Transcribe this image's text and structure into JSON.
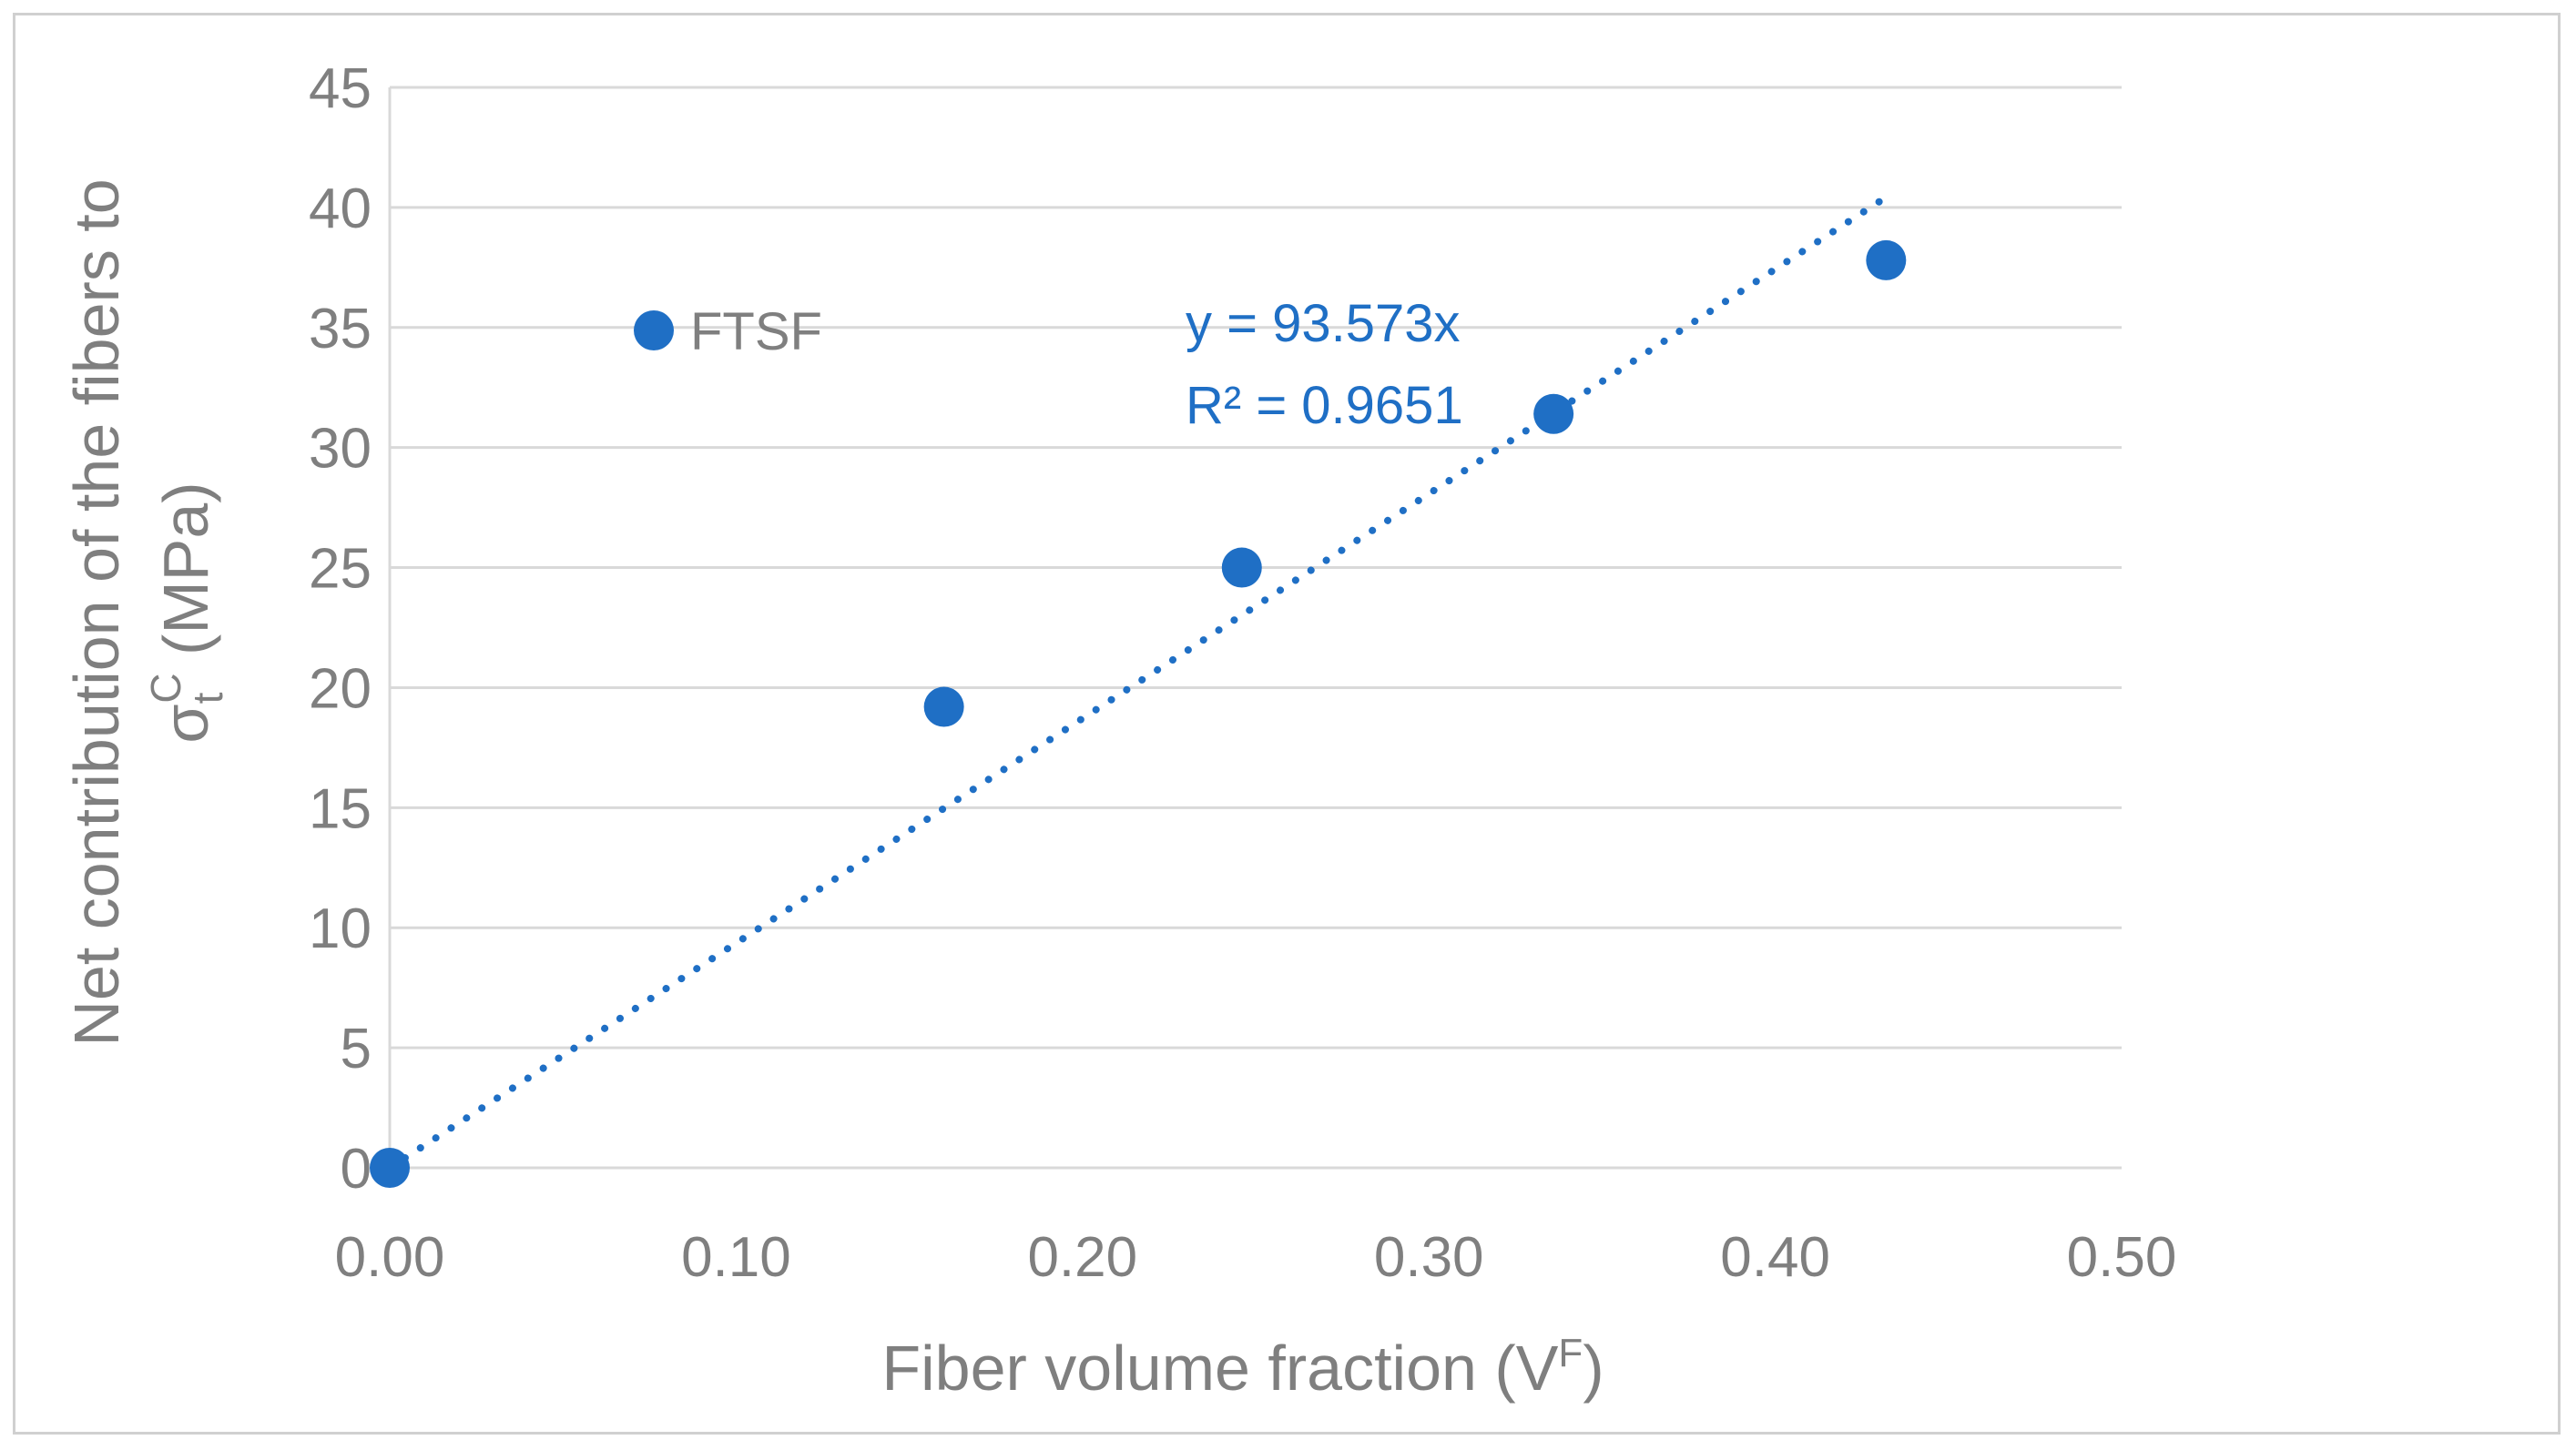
{
  "chart_data": {
    "type": "scatter",
    "title": "",
    "xlabel": "Fiber volume fraction (V",
    "xlabel_sup": "F",
    "xlabel_end": ")",
    "ylabel_line1": "Net contribution of the fibers to",
    "ylabel_line2_sigma": "σ",
    "ylabel_line2_sub": "t",
    "ylabel_line2_sup": "C",
    "ylabel_line2_end": " (MPa)",
    "xlim": [
      0,
      0.5
    ],
    "ylim": [
      0,
      45
    ],
    "xticks": [
      0,
      0.1,
      0.2,
      0.3,
      0.4,
      0.5
    ],
    "xtick_labels": [
      "0.00",
      "0.10",
      "0.20",
      "0.30",
      "0.40",
      "0.50"
    ],
    "yticks": [
      0,
      5,
      10,
      15,
      20,
      25,
      30,
      35,
      40,
      45
    ],
    "ytick_labels": [
      "0",
      "5",
      "10",
      "15",
      "20",
      "25",
      "30",
      "35",
      "40",
      "45"
    ],
    "grid": true,
    "series": [
      {
        "name": "FTSF",
        "x": [
          0.0,
          0.16,
          0.246,
          0.336,
          0.432
        ],
        "y": [
          0.0,
          19.2,
          25.0,
          31.4,
          37.8
        ]
      }
    ],
    "trendline": {
      "type": "linear-through-origin",
      "slope": 93.573,
      "x_range": [
        0.0,
        0.432
      ],
      "equation": "y = 93.573x",
      "r2_label": "R² = 0.9651"
    },
    "legend_position": "top-left",
    "colors": {
      "marker": "#1f6fc5",
      "grid": "#d9d9d9",
      "text": "#7f7f7f",
      "equation": "#1f6fc5"
    }
  }
}
